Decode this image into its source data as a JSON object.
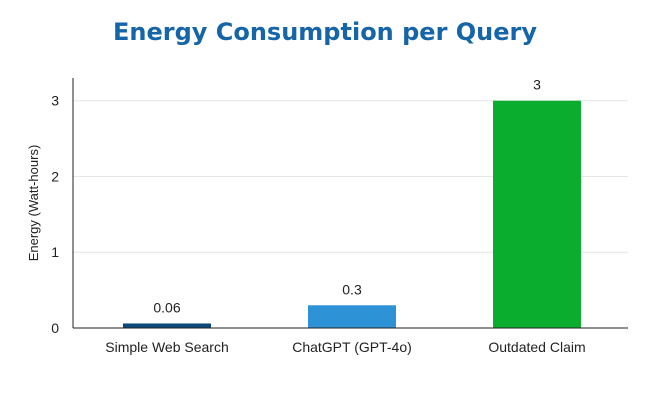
{
  "chart_data": {
    "type": "bar",
    "title": "Energy Consumption per Query",
    "xlabel": "",
    "ylabel": "Energy (Watt-hours)",
    "categories": [
      "Simple Web Search",
      "ChatGPT (GPT-4o)",
      "Outdated Claim"
    ],
    "values": [
      0.06,
      0.3,
      3
    ],
    "value_labels": [
      "0.06",
      "0.3",
      "3"
    ],
    "ylim": [
      0,
      3.3
    ],
    "yticks": [
      0,
      1,
      2,
      3
    ],
    "ytick_labels": [
      "0",
      "1",
      "2",
      "3"
    ],
    "grid": true,
    "legend": "none"
  },
  "colors": {
    "title": "#1565a8",
    "bars": [
      "#0d4a7a",
      "#2e93d6",
      "#0aad2e"
    ],
    "axis": "#222222",
    "grid": "#e6e6e6"
  }
}
